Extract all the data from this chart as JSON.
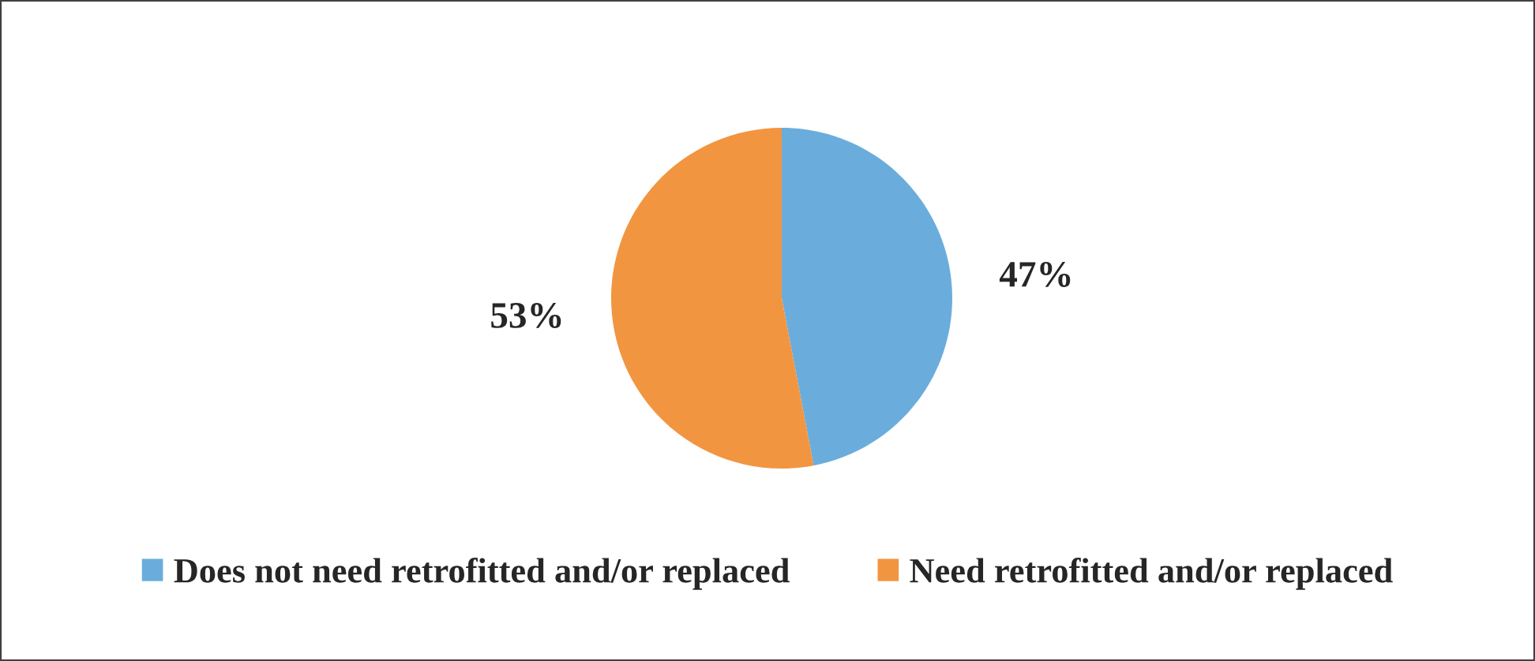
{
  "chart_data": {
    "type": "pie",
    "categories": [
      "Does not need retrofitted and/or replaced",
      "Need retrofitted and/or replaced"
    ],
    "values": [
      47,
      53
    ],
    "colors": [
      "#6aaddc",
      "#f29540"
    ],
    "value_labels": [
      "47%",
      "53%"
    ],
    "legend": "bottom"
  }
}
